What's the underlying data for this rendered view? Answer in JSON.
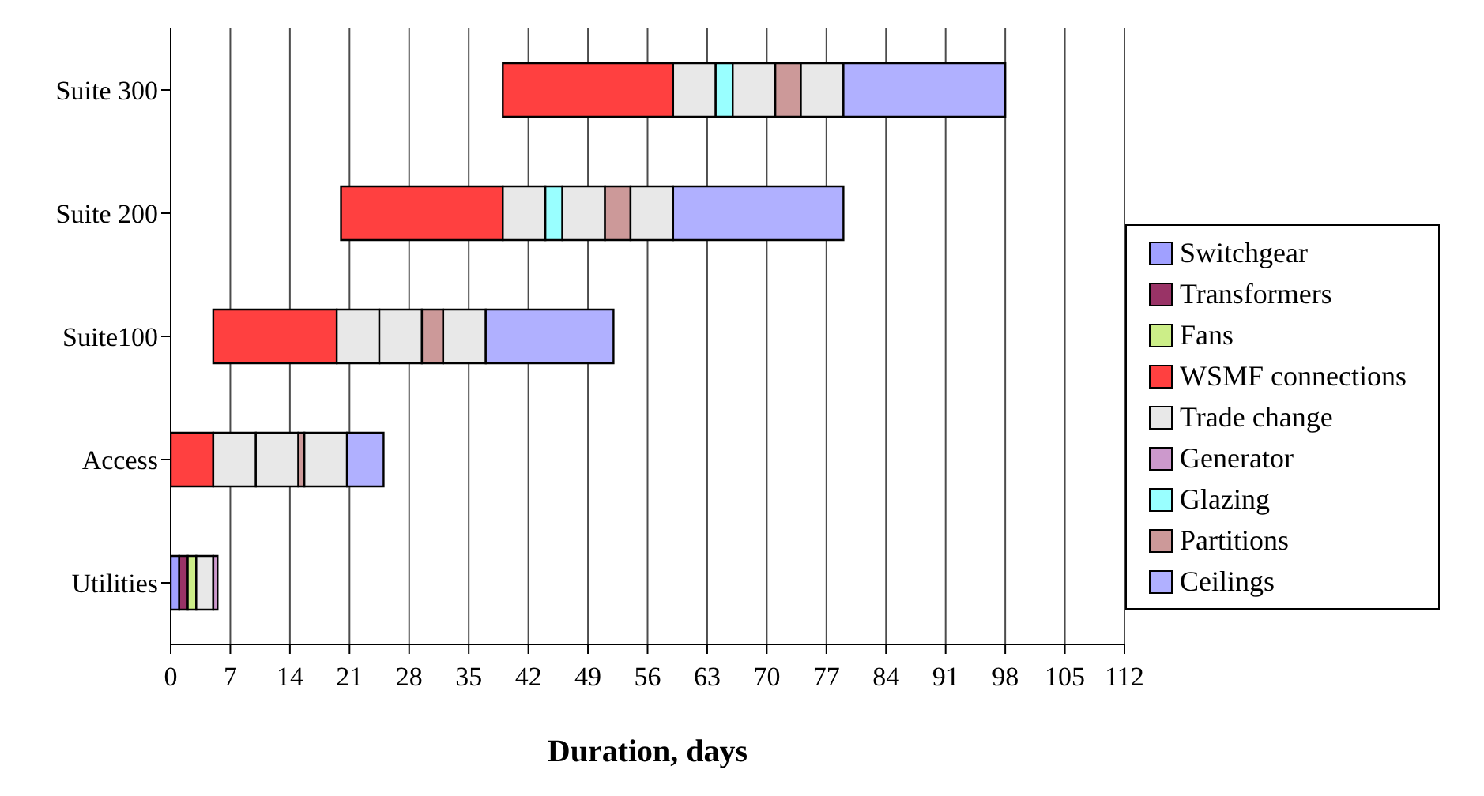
{
  "chart_data": {
    "type": "bar",
    "orientation": "horizontal",
    "xlabel": "Duration, days",
    "categories": [
      "Suite 300",
      "Suite 200",
      "Suite100",
      "Access",
      "Utilities"
    ],
    "series": [
      {
        "name": "Switchgear",
        "color": "#a0a0ff",
        "base": [
          null,
          null,
          null,
          null,
          0
        ],
        "values": [
          null,
          null,
          null,
          null,
          1
        ]
      },
      {
        "name": "Transformers",
        "color": "#993366",
        "base": [
          null,
          null,
          null,
          null,
          1
        ],
        "values": [
          null,
          null,
          null,
          null,
          1
        ]
      },
      {
        "name": "Fans",
        "color": "#ccee88",
        "base": [
          null,
          null,
          null,
          null,
          2
        ],
        "values": [
          null,
          null,
          null,
          null,
          1
        ]
      },
      {
        "name": "WSMF connections",
        "color": "#ff4040",
        "base": [
          39,
          20,
          5,
          0,
          null
        ],
        "values": [
          20,
          19,
          14.5,
          5,
          null
        ]
      },
      {
        "name": "Trade change",
        "color": "#e8e8e8",
        "base": [
          59,
          39,
          19.5,
          5,
          3
        ],
        "values": [
          5,
          5,
          5,
          5,
          2
        ]
      },
      {
        "name": "Generator",
        "color": "#cc99cc",
        "base": [
          null,
          null,
          null,
          null,
          5
        ],
        "values": [
          null,
          null,
          null,
          null,
          0.5
        ]
      },
      {
        "name": "Glazing",
        "color": "#99ffff",
        "base": [
          64,
          44,
          null,
          null,
          null
        ],
        "values": [
          2,
          2,
          null,
          null,
          null
        ]
      },
      {
        "color": "#e8e8e8",
        "base": [
          66,
          46,
          24.5,
          10,
          null
        ],
        "values": [
          5,
          5,
          5,
          5,
          null
        ]
      },
      {
        "name": "Partitions",
        "color": "#cc9999",
        "base": [
          71,
          51,
          29.5,
          15,
          null
        ],
        "values": [
          3,
          3,
          2.5,
          0.7,
          null
        ]
      },
      {
        "color": "#e8e8e8",
        "base": [
          74,
          54,
          32,
          15.7,
          null
        ],
        "values": [
          5,
          5,
          5,
          5,
          null
        ]
      },
      {
        "name": "Ceilings",
        "color": "#b0b0ff",
        "base": [
          79,
          59,
          37,
          20.7,
          null
        ],
        "values": [
          19,
          20,
          15,
          4.3,
          null
        ]
      }
    ],
    "xlim": [
      0,
      112
    ],
    "xticks": [
      0,
      7,
      14,
      21,
      28,
      35,
      42,
      49,
      56,
      63,
      70,
      77,
      84,
      91,
      98,
      105,
      112
    ],
    "grid": "x",
    "legend": "bottom right"
  }
}
